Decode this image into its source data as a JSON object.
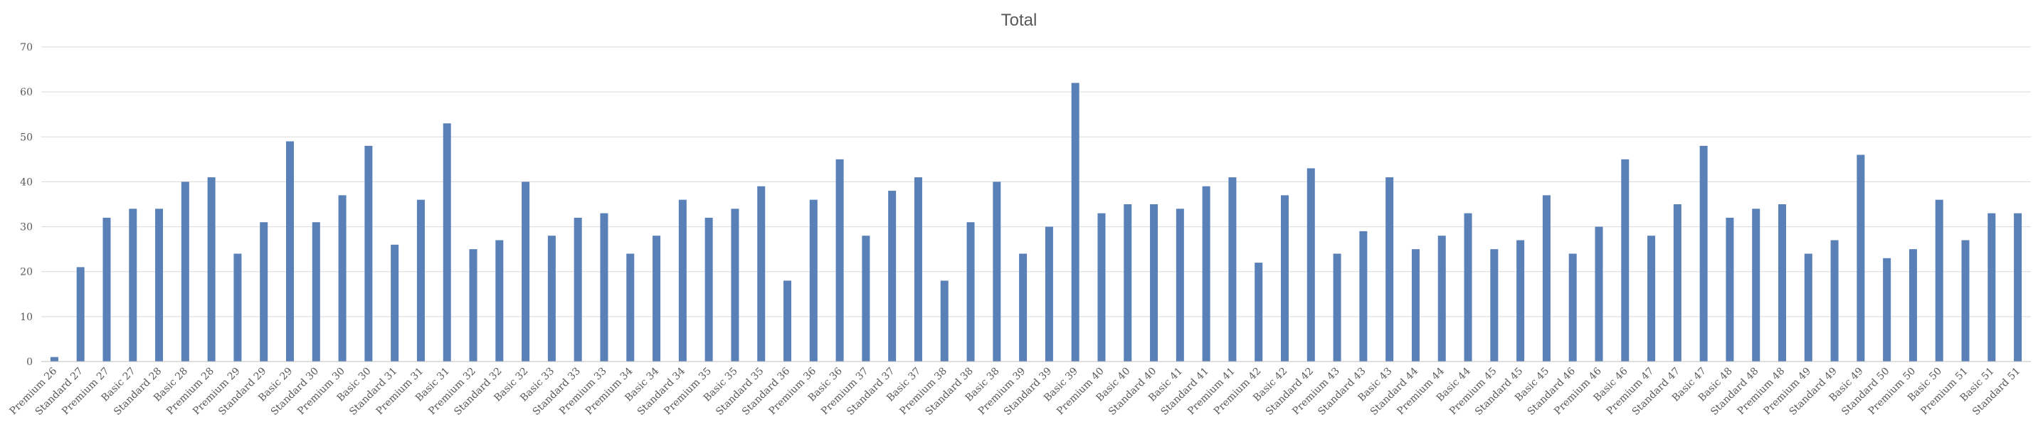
{
  "chart_data": {
    "type": "bar",
    "title": "Total",
    "xlabel": "",
    "ylabel": "",
    "ylim": [
      0,
      70
    ],
    "yticks": [
      0,
      10,
      20,
      30,
      40,
      50,
      60,
      70
    ],
    "grid": true,
    "legend": "none",
    "bar_color": "#5a80b8",
    "categories": [
      "Premium 26",
      "Standard 27",
      "Premium 27",
      "Basic 27",
      "Standard 28",
      "Basic 28",
      "Premium 28",
      "Premium 29",
      "Standard 29",
      "Basic 29",
      "Standard 30",
      "Premium 30",
      "Basic 30",
      "Standard 31",
      "Premium 31",
      "Basic 31",
      "Premium 32",
      "Standard 32",
      "Basic 32",
      "Basic 33",
      "Standard 33",
      "Premium 33",
      "Premium 34",
      "Basic 34",
      "Standard 34",
      "Premium 35",
      "Basic 35",
      "Standard 35",
      "Standard 36",
      "Premium 36",
      "Basic 36",
      "Premium 37",
      "Standard 37",
      "Basic 37",
      "Premium 38",
      "Standard 38",
      "Basic 38",
      "Premium 39",
      "Standard 39",
      "Basic 39",
      "Premium 40",
      "Basic 40",
      "Standard 40",
      "Basic 41",
      "Standard 41",
      "Premium 41",
      "Premium 42",
      "Basic 42",
      "Standard 42",
      "Premium 43",
      "Standard 43",
      "Basic 43",
      "Standard 44",
      "Premium 44",
      "Basic 44",
      "Premium 45",
      "Standard 45",
      "Basic 45",
      "Standard 46",
      "Premium 46",
      "Basic 46",
      "Premium 47",
      "Standard 47",
      "Basic 47",
      "Basic 48",
      "Standard 48",
      "Premium 48",
      "Premium 49",
      "Standard 49",
      "Basic 49",
      "Standard 50",
      "Premium 50",
      "Basic 50",
      "Premium 51",
      "Basic 51",
      "Standard 51"
    ],
    "values": [
      1,
      21,
      32,
      34,
      34,
      40,
      41,
      24,
      31,
      49,
      31,
      37,
      48,
      26,
      36,
      53,
      25,
      27,
      40,
      28,
      32,
      33,
      24,
      28,
      36,
      32,
      34,
      39,
      18,
      36,
      45,
      28,
      38,
      41,
      18,
      31,
      40,
      24,
      30,
      62,
      33,
      35,
      35,
      34,
      39,
      41,
      22,
      37,
      43,
      24,
      29,
      41,
      25,
      28,
      33,
      25,
      27,
      37,
      24,
      30,
      45,
      28,
      35,
      48,
      32,
      34,
      35,
      24,
      27,
      46,
      23,
      25,
      36,
      27,
      33,
      33
    ]
  }
}
